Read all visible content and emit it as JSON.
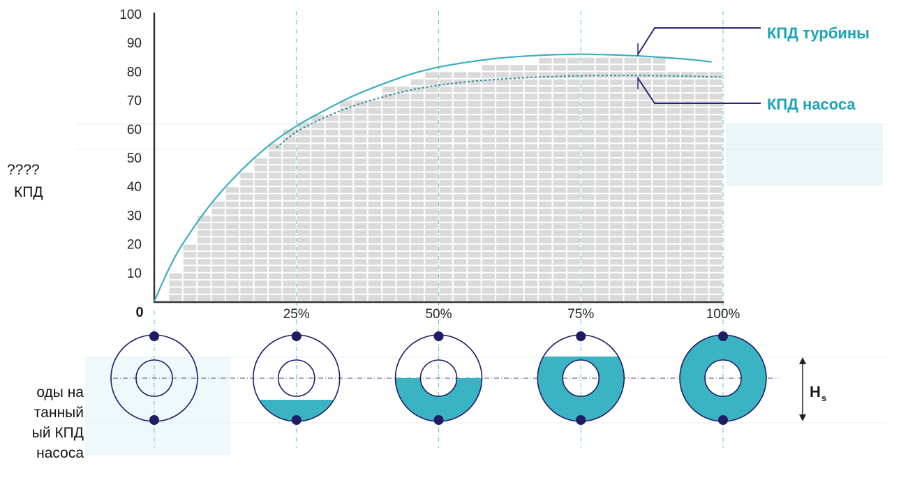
{
  "colors": {
    "turbine": "#3aafbd",
    "pump": "#2a8f9c",
    "water": "#3ab4c3",
    "bolt": "#1f1b66",
    "grid_cell": "#dadada",
    "dash": "#5fc2d1",
    "text": "#111111",
    "legend_text": "#1aa4b6",
    "leader": "#2a2870"
  },
  "side": {
    "garbled": "????",
    "label_kpd": "КПД",
    "lines": [
      "оды на",
      "танный",
      "ый КПД",
      "насоса"
    ]
  },
  "scale": {
    "hs_label": "H",
    "hs_sub": "s",
    "zero": "0"
  },
  "chart_data": {
    "type": "line",
    "x_tick_labels": [
      "25%",
      "50%",
      "75%",
      "100%"
    ],
    "x_ticks": [
      25,
      50,
      75,
      100
    ],
    "y_ticks": [
      10,
      20,
      30,
      40,
      50,
      60,
      70,
      80,
      90,
      100
    ],
    "xlim": [
      0,
      100
    ],
    "ylim": [
      0,
      100
    ],
    "grid": true,
    "legend_position": "top-right",
    "series": [
      {
        "name": "КПД турбины",
        "style": "solid",
        "x": [
          0,
          2.5,
          5,
          10,
          15,
          20,
          25,
          30,
          35,
          40,
          45,
          50,
          55,
          60,
          65,
          70,
          75,
          80,
          85,
          90,
          95,
          98
        ],
        "y": [
          0,
          11,
          20,
          34,
          45,
          54,
          61,
          66.5,
          71.5,
          75.5,
          79,
          81.5,
          83.2,
          84.5,
          85.3,
          85.8,
          86,
          85.8,
          85.4,
          84.8,
          84,
          83.3
        ]
      },
      {
        "name": "КПД насоса",
        "style": "dotted",
        "x": [
          21.5,
          25,
          30,
          35,
          40,
          45,
          50,
          55,
          60,
          65,
          70,
          75,
          80,
          85,
          90,
          95,
          100
        ],
        "y": [
          53.5,
          59,
          64,
          68,
          71,
          73.5,
          75.2,
          76.4,
          77.2,
          77.8,
          78.2,
          78.5,
          78.6,
          78.6,
          78.5,
          78.3,
          78
        ]
      }
    ],
    "bar_profile": [
      {
        "x_from": 2.5,
        "y": 10
      },
      {
        "x_from": 5,
        "y": 20
      },
      {
        "x_from": 7.5,
        "y": 30
      },
      {
        "x_from": 10,
        "y": 35
      },
      {
        "x_from": 12.5,
        "y": 40
      },
      {
        "x_from": 15,
        "y": 45
      },
      {
        "x_from": 17.5,
        "y": 50
      },
      {
        "x_from": 20,
        "y": 55
      },
      {
        "x_from": 22.5,
        "y": 60
      },
      {
        "x_from": 25,
        "y": 62.5
      },
      {
        "x_from": 27.5,
        "y": 65
      },
      {
        "x_from": 32.5,
        "y": 70
      },
      {
        "x_from": 40,
        "y": 75
      },
      {
        "x_from": 45,
        "y": 77.5
      },
      {
        "x_from": 47.5,
        "y": 80
      },
      {
        "x_from": 57.5,
        "y": 82.5
      },
      {
        "x_from": 67.5,
        "y": 85
      }
    ],
    "bar_end": 100,
    "bar_cap": [
      {
        "x_from": 90,
        "y": 80
      }
    ],
    "fill_levels": [
      0,
      0.25,
      0.5,
      0.75,
      1.0
    ]
  }
}
